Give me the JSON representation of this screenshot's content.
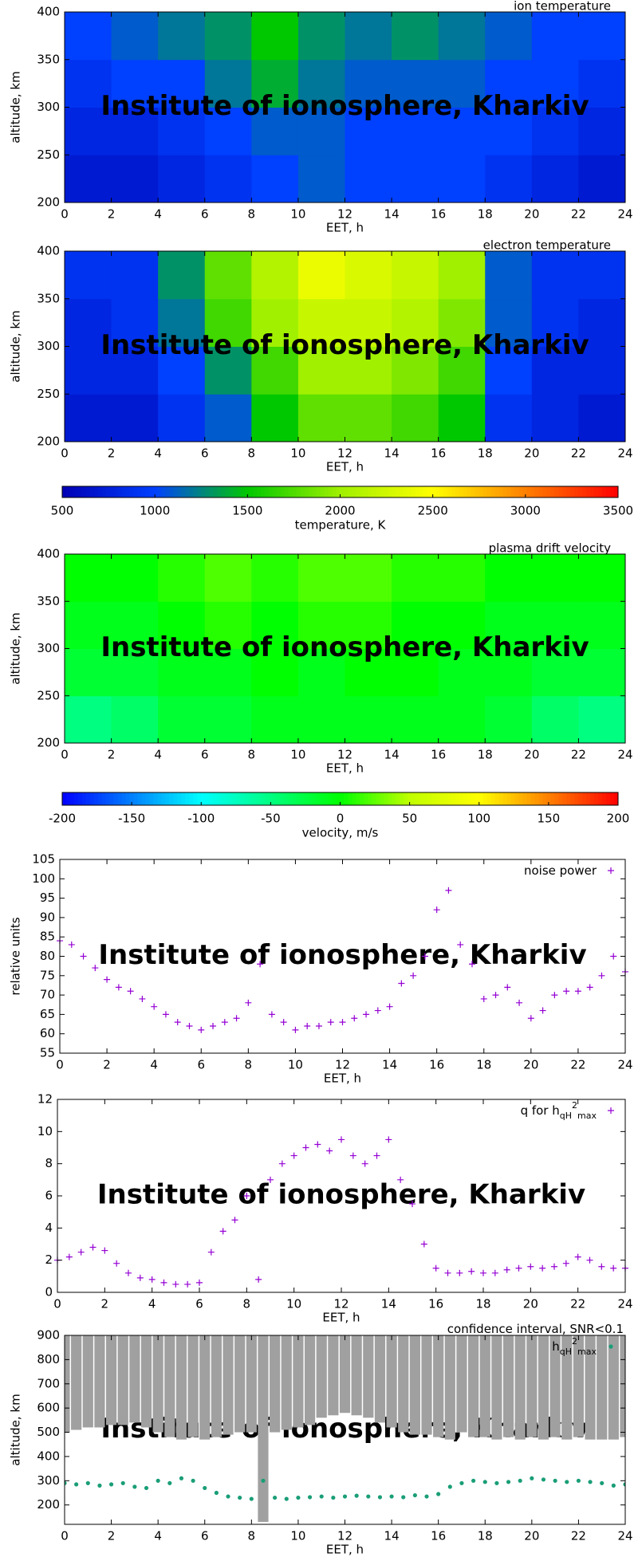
{
  "chart_data": [
    {
      "type": "heatmap",
      "title": "ion temperature",
      "xlabel": "EET, h",
      "ylabel": "altitude, km",
      "watermark": "Institute of ionosphere, Kharkiv",
      "xlim": [
        0,
        24
      ],
      "ylim": [
        200,
        400
      ],
      "xticks": [
        0,
        2,
        4,
        6,
        8,
        10,
        12,
        14,
        16,
        18,
        20,
        22,
        24
      ],
      "yticks": [
        200,
        250,
        300,
        350,
        400
      ],
      "x": [
        1,
        3,
        5,
        7,
        9,
        11,
        13,
        15,
        17,
        19,
        21,
        23
      ],
      "y": [
        225,
        275,
        325,
        375
      ],
      "z": [
        [
          700,
          700,
          800,
          900,
          1000,
          1100,
          1000,
          1000,
          1000,
          900,
          800,
          700
        ],
        [
          800,
          800,
          900,
          1000,
          1100,
          1100,
          1000,
          1000,
          1000,
          1000,
          900,
          800
        ],
        [
          900,
          1000,
          1000,
          1200,
          1400,
          1200,
          1100,
          1100,
          1100,
          1000,
          1000,
          900
        ],
        [
          1000,
          1100,
          1200,
          1300,
          1500,
          1300,
          1200,
          1300,
          1200,
          1100,
          1000,
          1000
        ]
      ]
    },
    {
      "type": "heatmap",
      "title": "electron temperature",
      "xlabel": "EET, h",
      "ylabel": "altitude, km",
      "watermark": "Institute of ionosphere, Kharkiv",
      "xlim": [
        0,
        24
      ],
      "ylim": [
        200,
        400
      ],
      "xticks": [
        0,
        2,
        4,
        6,
        8,
        10,
        12,
        14,
        16,
        18,
        20,
        22,
        24
      ],
      "yticks": [
        200,
        250,
        300,
        350,
        400
      ],
      "x": [
        1,
        3,
        5,
        7,
        9,
        11,
        13,
        15,
        17,
        19,
        21,
        23
      ],
      "y": [
        225,
        275,
        325,
        375
      ],
      "z": [
        [
          700,
          700,
          900,
          1100,
          1500,
          1800,
          1800,
          1700,
          1500,
          900,
          800,
          700
        ],
        [
          800,
          800,
          1000,
          1300,
          1700,
          2000,
          2000,
          1900,
          1700,
          1000,
          800,
          800
        ],
        [
          800,
          900,
          1200,
          1700,
          2000,
          2200,
          2200,
          2100,
          1900,
          1100,
          900,
          800
        ],
        [
          900,
          900,
          1300,
          1800,
          2100,
          2400,
          2300,
          2200,
          2000,
          1100,
          900,
          900
        ]
      ]
    },
    {
      "type": "colorbar",
      "label": "temperature, K",
      "clim": [
        500,
        3500
      ],
      "ticks": [
        500,
        1000,
        1500,
        2000,
        2500,
        3000,
        3500
      ],
      "colors": [
        "#0000b4",
        "#0040ff",
        "#00c800",
        "#a0f000",
        "#ffff00",
        "#ff8000",
        "#ff0000"
      ]
    },
    {
      "type": "heatmap",
      "title": "plasma drift velocity",
      "xlabel": "EET, h",
      "ylabel": "altitude, km",
      "watermark": "Institute of ionosphere, Kharkiv",
      "xlim": [
        0,
        24
      ],
      "ylim": [
        200,
        400
      ],
      "xticks": [
        0,
        2,
        4,
        6,
        8,
        10,
        12,
        14,
        16,
        18,
        20,
        22,
        24
      ],
      "yticks": [
        200,
        250,
        300,
        350,
        400
      ],
      "x": [
        1,
        3,
        5,
        7,
        9,
        11,
        13,
        15,
        17,
        19,
        21,
        23
      ],
      "y": [
        225,
        275,
        325,
        375
      ],
      "z": [
        [
          -50,
          -40,
          -20,
          -20,
          -10,
          -10,
          -10,
          -10,
          -10,
          -20,
          -40,
          -50
        ],
        [
          -20,
          -20,
          -10,
          -10,
          0,
          -10,
          0,
          0,
          -10,
          -10,
          -20,
          -20
        ],
        [
          -10,
          -10,
          0,
          10,
          0,
          10,
          10,
          0,
          0,
          -10,
          -10,
          -10
        ],
        [
          0,
          0,
          10,
          20,
          10,
          20,
          20,
          10,
          10,
          0,
          0,
          0
        ]
      ]
    },
    {
      "type": "colorbar",
      "label": "velocity, m/s",
      "clim": [
        -200,
        200
      ],
      "ticks": [
        -200,
        -150,
        -100,
        -50,
        0,
        50,
        100,
        150,
        200
      ],
      "colors": [
        "#0000ff",
        "#0080ff",
        "#00ffff",
        "#00ff80",
        "#00ff00",
        "#c0ff00",
        "#ffff00",
        "#ff8000",
        "#ff0000"
      ]
    },
    {
      "type": "scatter",
      "xlabel": "EET, h",
      "ylabel": "relative units",
      "watermark": "Institute of ionosphere, Kharkiv",
      "xlim": [
        0,
        24
      ],
      "ylim": [
        55,
        105
      ],
      "xticks": [
        0,
        2,
        4,
        6,
        8,
        10,
        12,
        14,
        16,
        18,
        20,
        22,
        24
      ],
      "yticks": [
        55,
        60,
        65,
        70,
        75,
        80,
        85,
        90,
        95,
        100,
        105
      ],
      "x": [
        0,
        0.5,
        1,
        1.5,
        2,
        2.5,
        3,
        3.5,
        4,
        4.5,
        5,
        5.5,
        6,
        6.5,
        7,
        7.5,
        8,
        8.5,
        9,
        9.5,
        10,
        10.5,
        11,
        11.5,
        12,
        12.5,
        13,
        13.5,
        14,
        14.5,
        15,
        15.5,
        16,
        16.5,
        17,
        17.5,
        18,
        18.5,
        19,
        19.5,
        20,
        20.5,
        21,
        21.5,
        22,
        22.5,
        23,
        23.5,
        24
      ],
      "series": [
        {
          "name_parts": [
            {
              "text": "noise power"
            }
          ],
          "color": "#9400d3",
          "values": [
            84,
            83,
            80,
            77,
            74,
            72,
            71,
            69,
            67,
            65,
            63,
            62,
            61,
            62,
            63,
            64,
            68,
            78,
            65,
            63,
            61,
            62,
            62,
            63,
            63,
            64,
            65,
            66,
            67,
            73,
            75,
            80,
            92,
            97,
            83,
            78,
            69,
            70,
            72,
            68,
            64,
            66,
            70,
            71,
            71,
            72,
            75,
            80,
            76
          ]
        }
      ]
    },
    {
      "type": "scatter",
      "xlabel": "EET, h",
      "watermark": "Institute of ionosphere, Kharkiv",
      "xlim": [
        0,
        24
      ],
      "ylim": [
        0,
        12
      ],
      "xticks": [
        0,
        2,
        4,
        6,
        8,
        10,
        12,
        14,
        16,
        18,
        20,
        22,
        24
      ],
      "yticks": [
        0,
        2,
        4,
        6,
        8,
        10,
        12
      ],
      "x": [
        0,
        0.5,
        1,
        1.5,
        2,
        2.5,
        3,
        3.5,
        4,
        4.5,
        5,
        5.5,
        6,
        6.5,
        7,
        7.5,
        8,
        8.5,
        9,
        9.5,
        10,
        10.5,
        11,
        11.5,
        12,
        12.5,
        13,
        13.5,
        14,
        14.5,
        15,
        15.5,
        16,
        16.5,
        17,
        17.5,
        18,
        18.5,
        19,
        19.5,
        20,
        20.5,
        21,
        21.5,
        22,
        22.5,
        23,
        23.5,
        24
      ],
      "series": [
        {
          "name_parts": [
            {
              "text": "q for h"
            },
            {
              "text": "qH",
              "shift": "sub"
            },
            {
              "text": "2",
              "shift": "super"
            },
            {
              "text": "max",
              "shift": "sub"
            }
          ],
          "color": "#9400d3",
          "values": [
            2,
            2.2,
            2.5,
            2.8,
            2.6,
            1.8,
            1.2,
            0.9,
            0.8,
            0.6,
            0.5,
            0.5,
            0.6,
            2.5,
            3.8,
            4.5,
            6,
            0.8,
            7,
            8,
            8.5,
            9,
            9.2,
            8.8,
            9.5,
            8.5,
            8,
            8.5,
            9.5,
            7,
            5.5,
            3,
            1.5,
            1.2,
            1.2,
            1.3,
            1.2,
            1.2,
            1.4,
            1.5,
            1.6,
            1.5,
            1.6,
            1.8,
            2.2,
            2,
            1.6,
            1.5,
            1.5
          ]
        }
      ]
    },
    {
      "type": "scatter",
      "xlabel": "EET, h",
      "ylabel": "altitude, km",
      "watermark": "Institute of ionosphere, Kharkiv",
      "xlim": [
        0,
        24
      ],
      "ylim": [
        120,
        900
      ],
      "xticks": [
        0,
        2,
        4,
        6,
        8,
        10,
        12,
        14,
        16,
        18,
        20,
        22,
        24
      ],
      "yticks": [
        200,
        300,
        400,
        500,
        600,
        700,
        800,
        900
      ],
      "x": [
        0,
        0.5,
        1,
        1.5,
        2,
        2.5,
        3,
        3.5,
        4,
        4.5,
        5,
        5.5,
        6,
        6.5,
        7,
        7.5,
        8,
        8.5,
        9,
        9.5,
        10,
        10.5,
        11,
        11.5,
        12,
        12.5,
        13,
        13.5,
        14,
        14.5,
        15,
        15.5,
        16,
        16.5,
        17,
        17.5,
        18,
        18.5,
        19,
        19.5,
        20,
        20.5,
        21,
        21.5,
        22,
        22.5,
        23,
        23.5,
        24
      ],
      "series": [
        {
          "name_parts": [
            {
              "text": "confidence interval, SNR<0.1"
            }
          ],
          "color": "#a0a0a0",
          "style": "band",
          "values": [
            500,
            510,
            520,
            520,
            530,
            530,
            540,
            520,
            500,
            480,
            470,
            480,
            470,
            480,
            490,
            500,
            500,
            130,
            500,
            510,
            520,
            530,
            560,
            570,
            580,
            570,
            560,
            540,
            520,
            500,
            490,
            490,
            480,
            470,
            500,
            480,
            480,
            470,
            480,
            470,
            480,
            470,
            480,
            470,
            480,
            470,
            470,
            470,
            480
          ]
        },
        {
          "name_parts": [
            {
              "text": "h"
            },
            {
              "text": "qH",
              "shift": "sub"
            },
            {
              "text": "2",
              "shift": "super"
            },
            {
              "text": "max",
              "shift": "sub"
            }
          ],
          "color": "#1a9e77",
          "style": "dot",
          "values": [
            290,
            285,
            290,
            280,
            285,
            290,
            275,
            270,
            300,
            290,
            310,
            300,
            270,
            250,
            235,
            230,
            225,
            300,
            230,
            225,
            230,
            232,
            235,
            230,
            235,
            238,
            235,
            232,
            235,
            232,
            240,
            235,
            245,
            275,
            290,
            300,
            295,
            290,
            295,
            300,
            310,
            305,
            300,
            295,
            300,
            295,
            290,
            280,
            285
          ]
        }
      ]
    }
  ]
}
